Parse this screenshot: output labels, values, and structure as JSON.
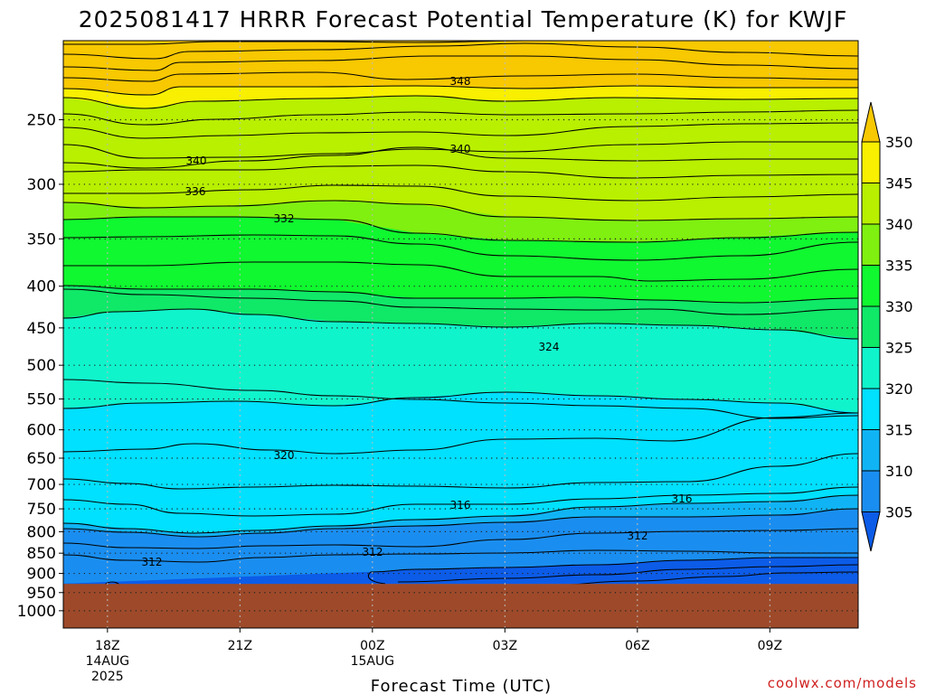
{
  "chart_data": {
    "type": "contour",
    "title": "2025081417 HRRR Forecast Potential Temperature (K) for KWJF",
    "xlabel": "Forecast Time (UTC)",
    "ylabel": "",
    "x_ticks": [
      {
        "label": "18Z",
        "date": "14AUG",
        "year": "2025"
      },
      {
        "label": "21Z",
        "date": "",
        "year": ""
      },
      {
        "label": "00Z",
        "date": "15AUG",
        "year": ""
      },
      {
        "label": "03Z",
        "date": "",
        "year": ""
      },
      {
        "label": "06Z",
        "date": "",
        "year": ""
      },
      {
        "label": "09Z",
        "date": "",
        "year": ""
      }
    ],
    "x_hours": [
      0,
      3,
      6,
      9,
      12,
      15
    ],
    "xlim_hours": [
      -1,
      17
    ],
    "y_ticks": [
      "250",
      "300",
      "350",
      "400",
      "450",
      "500",
      "550",
      "600",
      "650",
      "700",
      "750",
      "800",
      "850",
      "900",
      "950",
      "1000"
    ],
    "ylim_hPa": [
      200,
      1050
    ],
    "y_scale": "log",
    "surface_pressure_hPa": 927,
    "colorbar": {
      "labels": [
        "305",
        "310",
        "315",
        "320",
        "325",
        "330",
        "335",
        "340",
        "345",
        "350"
      ],
      "colors": [
        "#0c5ce8",
        "#1a8ef0",
        "#10b4f4",
        "#00e0ff",
        "#10f4cc",
        "#10e868",
        "#10f830",
        "#80f010",
        "#b8f000",
        "#f8f000",
        "#f8c800"
      ]
    },
    "contour_labels": [
      {
        "value": "348"
      },
      {
        "value": "340"
      },
      {
        "value": "340"
      },
      {
        "value": "336"
      },
      {
        "value": "332"
      },
      {
        "value": "324"
      },
      {
        "value": "320"
      },
      {
        "value": "316"
      },
      {
        "value": "316"
      },
      {
        "value": "312"
      },
      {
        "value": "312"
      },
      {
        "value": "312"
      }
    ],
    "grid": true,
    "ground_color": "#9e4a2a"
  },
  "credit": "coolwx.com/models"
}
